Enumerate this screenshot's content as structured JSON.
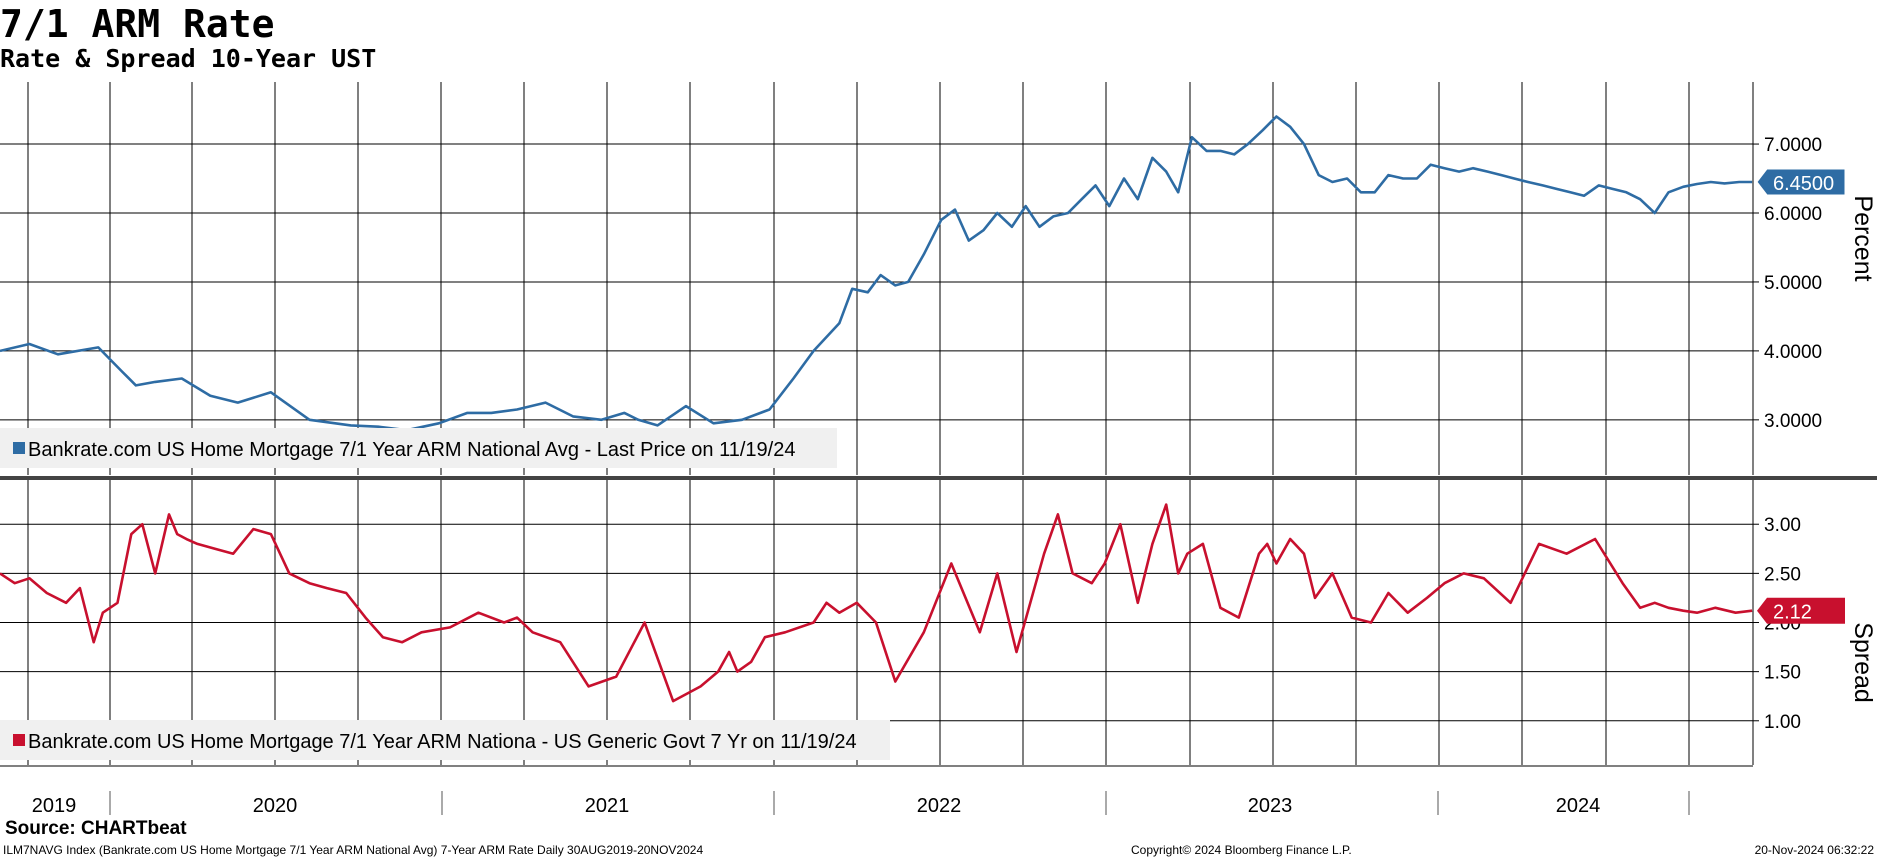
{
  "header": {
    "title": "7/1 ARM Rate",
    "subtitle": "Rate & Spread 10-Year UST"
  },
  "footer": {
    "source": "Source: CHARTbeat",
    "info": "ILM7NAVG Index (Bankrate.com US Home Mortgage 7/1 Year ARM National Avg) 7-Year ARM Rate  Daily 30AUG2019-20NOV2024",
    "copyright": "Copyright© 2024 Bloomberg Finance L.P.",
    "timestamp": "20-Nov-2024 06:32:22"
  },
  "colors": {
    "rate_line": "#2e6ca4",
    "spread_line": "#c8102e",
    "grid": "#000000",
    "legend_bg": "#f0f0f0",
    "divider": "#444444"
  },
  "chart_data": [
    {
      "type": "line",
      "panel": "top",
      "ylabel": "Percent",
      "y_ticks": [
        "3.0000",
        "4.0000",
        "5.0000",
        "6.0000",
        "7.0000"
      ],
      "ylim": [
        2.2,
        7.9
      ],
      "xlim": [
        "2019-08-30",
        "2024-11-20"
      ],
      "x_year_labels": [
        "2019",
        "2020",
        "2021",
        "2022",
        "2023",
        "2024"
      ],
      "grid": true,
      "legend_position": "bottom-left",
      "legend": "Bankrate.com US Home Mortgage 7/1 Year ARM National Avg - Last Price on 11/19/24",
      "last_value_label": "6.4500",
      "series": [
        {
          "name": "Bankrate.com US Home Mortgage 7/1 Year ARM National Avg",
          "x": [
            "2019-08-30",
            "2019-10-01",
            "2019-11-01",
            "2019-12-15",
            "2020-01-10",
            "2020-01-25",
            "2020-02-15",
            "2020-03-15",
            "2020-04-15",
            "2020-05-15",
            "2020-06-20",
            "2020-08-01",
            "2020-09-15",
            "2020-10-15",
            "2020-11-15",
            "2020-12-20",
            "2021-01-20",
            "2021-02-15",
            "2021-03-15",
            "2021-04-15",
            "2021-05-15",
            "2021-06-15",
            "2021-07-10",
            "2021-07-25",
            "2021-08-15",
            "2021-09-15",
            "2021-10-15",
            "2021-11-15",
            "2021-12-15",
            "2022-01-10",
            "2022-02-01",
            "2022-03-01",
            "2022-03-15",
            "2022-04-01",
            "2022-04-15",
            "2022-05-01",
            "2022-05-15",
            "2022-06-01",
            "2022-06-20",
            "2022-07-05",
            "2022-07-20",
            "2022-08-05",
            "2022-08-20",
            "2022-09-05",
            "2022-09-20",
            "2022-10-05",
            "2022-10-20",
            "2022-11-05",
            "2022-11-20",
            "2022-12-05",
            "2022-12-20",
            "2023-01-05",
            "2023-01-20",
            "2023-02-05",
            "2023-02-20",
            "2023-03-05",
            "2023-03-20",
            "2023-04-05",
            "2023-04-20",
            "2023-05-05",
            "2023-05-20",
            "2023-06-05",
            "2023-06-20",
            "2023-07-05",
            "2023-07-20",
            "2023-08-05",
            "2023-08-20",
            "2023-09-05",
            "2023-09-20",
            "2023-10-05",
            "2023-10-20",
            "2023-11-05",
            "2023-11-20",
            "2023-12-05",
            "2023-12-20",
            "2024-01-05",
            "2024-01-20",
            "2024-02-05",
            "2024-02-20",
            "2024-03-05",
            "2024-03-20",
            "2024-04-05",
            "2024-04-20",
            "2024-05-05",
            "2024-05-20",
            "2024-06-05",
            "2024-06-20",
            "2024-07-05",
            "2024-07-20",
            "2024-08-05",
            "2024-08-20",
            "2024-09-05",
            "2024-09-20",
            "2024-10-05",
            "2024-10-20",
            "2024-11-05",
            "2024-11-19"
          ],
          "y": [
            4.0,
            4.1,
            3.95,
            4.05,
            3.7,
            3.5,
            3.55,
            3.6,
            3.35,
            3.25,
            3.4,
            3.0,
            2.92,
            2.9,
            2.85,
            2.95,
            3.1,
            3.1,
            3.15,
            3.25,
            3.05,
            3.0,
            3.1,
            3.0,
            2.92,
            3.2,
            2.95,
            3.0,
            3.15,
            3.6,
            4.0,
            4.4,
            4.9,
            4.85,
            5.1,
            4.95,
            5.0,
            5.4,
            5.9,
            6.05,
            5.6,
            5.75,
            6.0,
            5.8,
            6.1,
            5.8,
            5.95,
            6.0,
            6.2,
            6.4,
            6.1,
            6.5,
            6.2,
            6.8,
            6.6,
            6.3,
            7.1,
            6.9,
            6.9,
            6.85,
            7.0,
            7.2,
            7.4,
            7.25,
            7.0,
            6.55,
            6.45,
            6.5,
            6.3,
            6.3,
            6.55,
            6.5,
            6.5,
            6.7,
            6.65,
            6.6,
            6.65,
            6.6,
            6.55,
            6.5,
            6.45,
            6.4,
            6.35,
            6.3,
            6.25,
            6.4,
            6.35,
            6.3,
            6.2,
            6.0,
            6.3,
            6.38,
            6.42,
            6.45,
            6.43,
            6.45,
            6.45
          ]
        }
      ]
    },
    {
      "type": "line",
      "panel": "bottom",
      "ylabel": "Spread",
      "y_ticks": [
        "1.00",
        "1.50",
        "2.00",
        "2.50",
        "3.00"
      ],
      "ylim": [
        0.55,
        3.45
      ],
      "xlim": [
        "2019-08-30",
        "2024-11-20"
      ],
      "grid": true,
      "legend_position": "bottom-left",
      "legend": "Bankrate.com US Home Mortgage 7/1 Year ARM Nationa - US Generic Govt 7 Yr on 11/19/24",
      "last_value_label": "2.12",
      "series": [
        {
          "name": "Bankrate.com US Home Mortgage 7/1 Year ARM Nationa - US Generic Govt 7 Yr",
          "x": [
            "2019-08-30",
            "2019-09-15",
            "2019-10-01",
            "2019-10-20",
            "2019-11-10",
            "2019-11-25",
            "2019-12-10",
            "2019-12-20",
            "2020-01-05",
            "2020-01-20",
            "2020-02-01",
            "2020-02-15",
            "2020-03-01",
            "2020-03-10",
            "2020-03-20",
            "2020-04-01",
            "2020-04-20",
            "2020-05-10",
            "2020-06-01",
            "2020-06-20",
            "2020-07-10",
            "2020-08-01",
            "2020-08-20",
            "2020-09-10",
            "2020-10-01",
            "2020-10-20",
            "2020-11-10",
            "2020-12-01",
            "2021-01-01",
            "2021-02-01",
            "2021-03-01",
            "2021-03-15",
            "2021-04-01",
            "2021-05-01",
            "2021-06-01",
            "2021-07-01",
            "2021-08-01",
            "2021-09-01",
            "2021-10-01",
            "2021-10-20",
            "2021-11-01",
            "2021-11-10",
            "2021-11-25",
            "2021-12-10",
            "2022-01-01",
            "2022-02-01",
            "2022-02-15",
            "2022-03-01",
            "2022-03-20",
            "2022-04-10",
            "2022-05-01",
            "2022-06-01",
            "2022-07-01",
            "2022-08-01",
            "2022-08-20",
            "2022-09-10",
            "2022-09-25",
            "2022-10-10",
            "2022-10-25",
            "2022-11-10",
            "2022-12-01",
            "2022-12-15",
            "2023-01-01",
            "2023-01-20",
            "2023-02-05",
            "2023-02-20",
            "2023-03-05",
            "2023-03-15",
            "2023-04-01",
            "2023-04-20",
            "2023-05-10",
            "2023-06-01",
            "2023-06-10",
            "2023-06-20",
            "2023-07-05",
            "2023-07-20",
            "2023-08-01",
            "2023-08-20",
            "2023-09-10",
            "2023-10-01",
            "2023-10-20",
            "2023-11-10",
            "2023-12-01",
            "2023-12-20",
            "2024-01-10",
            "2024-02-01",
            "2024-03-01",
            "2024-04-01",
            "2024-05-01",
            "2024-06-01",
            "2024-07-01",
            "2024-07-20",
            "2024-08-05",
            "2024-08-20",
            "2024-09-05",
            "2024-09-20",
            "2024-10-10",
            "2024-11-01",
            "2024-11-19"
          ],
          "y": [
            2.5,
            2.4,
            2.45,
            2.3,
            2.2,
            2.35,
            1.8,
            2.1,
            2.2,
            2.9,
            3.0,
            2.5,
            3.1,
            2.9,
            2.85,
            2.8,
            2.75,
            2.7,
            2.95,
            2.9,
            2.5,
            2.4,
            2.35,
            2.3,
            2.05,
            1.85,
            1.8,
            1.9,
            1.95,
            2.1,
            2.0,
            2.05,
            1.9,
            1.8,
            1.35,
            1.45,
            2.0,
            1.2,
            1.35,
            1.5,
            1.7,
            1.5,
            1.6,
            1.85,
            1.9,
            2.0,
            2.2,
            2.1,
            2.2,
            2.0,
            1.4,
            1.9,
            2.6,
            1.9,
            2.5,
            1.7,
            2.2,
            2.7,
            3.1,
            2.5,
            2.4,
            2.6,
            3.0,
            2.2,
            2.8,
            3.2,
            2.5,
            2.7,
            2.8,
            2.15,
            2.05,
            2.7,
            2.8,
            2.6,
            2.85,
            2.7,
            2.25,
            2.5,
            2.05,
            2.0,
            2.3,
            2.1,
            2.25,
            2.4,
            2.5,
            2.45,
            2.2,
            2.8,
            2.7,
            2.85,
            2.4,
            2.15,
            2.2,
            2.15,
            2.12,
            2.1,
            2.15,
            2.1,
            2.12
          ]
        }
      ]
    }
  ]
}
